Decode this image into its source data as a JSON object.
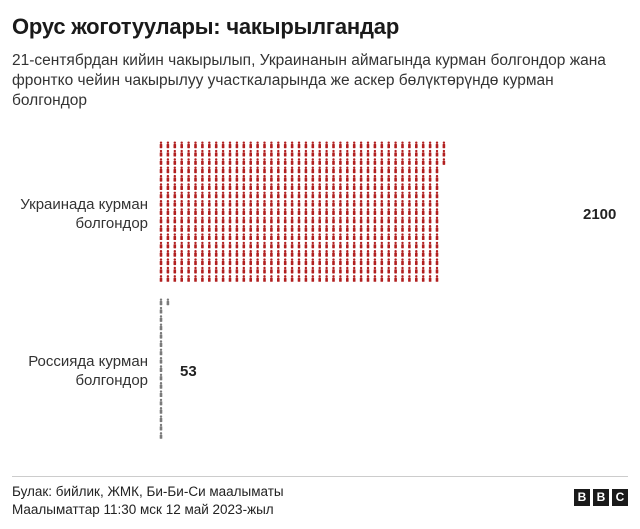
{
  "title": "Орус жоготуулары: чакырылгандар",
  "subtitle": "21-сентябрдан кийин чакырылып, Украинанын аймагында курман болгондор жана фронтко чейин чакырылуу участкаларында же аскер бөлүктөрүндө курман болгондор",
  "chart_data": {
    "type": "bar",
    "style": "pictogram",
    "categories": [
      "Украинада курман болгондор",
      "Россияда курман болгондор"
    ],
    "values": [
      2100,
      53
    ],
    "value_labels": [
      "2100",
      "53"
    ],
    "colors": [
      "#b11f1f",
      "#7a7a7a"
    ],
    "icon": "soldier-icon"
  },
  "footer": {
    "source": "Булак: бийлик, ЖМК, Би-Би-Си маалыматы",
    "date": "Маалыматтар 11:30 мск 12 май 2023-жыл"
  },
  "logo": {
    "letters": [
      "B",
      "B",
      "C"
    ]
  }
}
